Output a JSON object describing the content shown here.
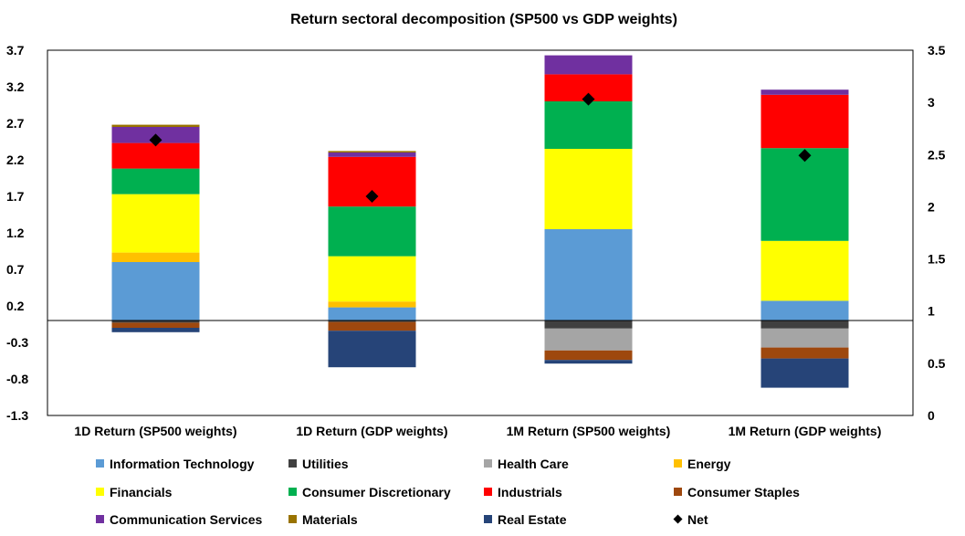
{
  "chart_data": {
    "type": "bar",
    "stacked": true,
    "title": "Return sectoral decomposition (SP500 vs GDP weights)",
    "categories": [
      "1D Return (SP500 weights)",
      "1D Return (GDP weights)",
      "1M Return (SP500 weights)",
      "1M Return (GDP weights)"
    ],
    "ylim": [
      -1.3,
      3.7
    ],
    "yticks": [
      "3.7",
      "3.2",
      "2.7",
      "2.2",
      "1.7",
      "1.2",
      "0.7",
      "0.2",
      "-0.3",
      "-0.8",
      "-1.3"
    ],
    "y2lim": [
      0,
      3.5
    ],
    "y2ticks": [
      "3.5",
      "3",
      "2.5",
      "2",
      "1.5",
      "1",
      "0.5",
      "0"
    ],
    "legend_position": "bottom",
    "gridlines": false,
    "series": [
      {
        "name": "Information Technology",
        "color": "#5b9bd5",
        "values": [
          0.8,
          0.18,
          1.25,
          0.27
        ]
      },
      {
        "name": "Utilities",
        "color": "#404040",
        "values": [
          -0.03,
          -0.02,
          -0.11,
          -0.11
        ]
      },
      {
        "name": "Health Care",
        "color": "#a5a5a5",
        "values": [
          0.0,
          0.0,
          -0.3,
          -0.26
        ]
      },
      {
        "name": "Energy",
        "color": "#ffc000",
        "values": [
          0.13,
          0.08,
          0.0,
          0.0
        ]
      },
      {
        "name": "Financials",
        "color": "#ffff00",
        "values": [
          0.8,
          0.62,
          1.1,
          0.82
        ]
      },
      {
        "name": "Consumer Discretionary",
        "color": "#00b050",
        "values": [
          0.35,
          0.68,
          0.65,
          1.27
        ]
      },
      {
        "name": "Industrials",
        "color": "#ff0000",
        "values": [
          0.35,
          0.68,
          0.37,
          0.73
        ]
      },
      {
        "name": "Consumer Staples",
        "color": "#9e480e",
        "values": [
          -0.07,
          -0.12,
          -0.13,
          -0.15
        ]
      },
      {
        "name": "Communication Services",
        "color": "#7030a0",
        "values": [
          0.22,
          0.06,
          0.26,
          0.07
        ]
      },
      {
        "name": "Materials",
        "color": "#997300",
        "values": [
          0.03,
          0.02,
          0.0,
          0.0
        ]
      },
      {
        "name": "Real Estate",
        "color": "#264478",
        "values": [
          -0.06,
          -0.5,
          -0.05,
          -0.4
        ]
      }
    ],
    "net": {
      "name": "Net",
      "color": "#000000",
      "values": [
        2.47,
        1.7,
        3.03,
        2.26
      ]
    }
  }
}
